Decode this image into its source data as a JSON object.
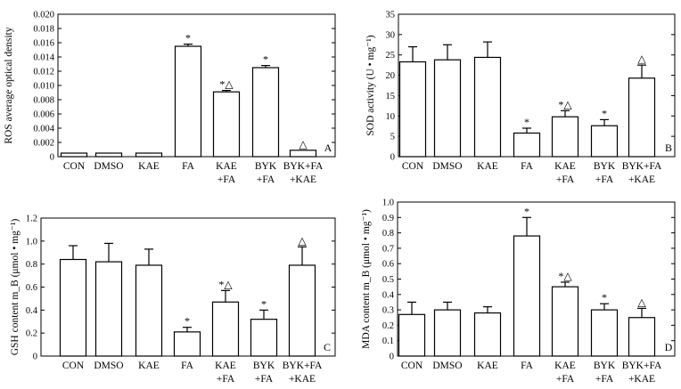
{
  "chart_data": [
    {
      "panel": "A",
      "type": "bar",
      "ylabel": "ROS average optical density",
      "ylim": [
        0,
        0.02
      ],
      "yticks": [
        0,
        0.002,
        0.004,
        0.006,
        0.008,
        0.01,
        0.012,
        0.014,
        0.016,
        0.018,
        0.02
      ],
      "ytick_labels": [
        "0",
        "0.002",
        "0.004",
        "0.006",
        "0.008",
        "0.010",
        "0.012",
        "0.014",
        "0.016",
        "0.018",
        "0.020"
      ],
      "categories": [
        [
          "CON"
        ],
        [
          "DMSO"
        ],
        [
          "KAE"
        ],
        [
          "FA"
        ],
        [
          "KAE",
          "+FA"
        ],
        [
          "BYK",
          "+FA"
        ],
        [
          "BYK+FA",
          "+KAE"
        ]
      ],
      "values": [
        0.0005,
        0.0005,
        0.0005,
        0.0155,
        0.0091,
        0.0125,
        0.0009
      ],
      "errors": [
        0,
        0,
        0,
        0.0003,
        0.0002,
        0.0003,
        0
      ],
      "significance": [
        "",
        "",
        "",
        "*",
        "*△",
        "*",
        "△"
      ]
    },
    {
      "panel": "B",
      "type": "bar",
      "ylabel": "SOD activity (U • mg⁻¹)",
      "ylim": [
        0,
        35
      ],
      "yticks": [
        0,
        5,
        10,
        15,
        20,
        25,
        30,
        35
      ],
      "ytick_labels": [
        "0",
        "5",
        "10",
        "15",
        "20",
        "25",
        "30",
        "35"
      ],
      "categories": [
        [
          "CON"
        ],
        [
          "DMSO"
        ],
        [
          "KAE"
        ],
        [
          "FA"
        ],
        [
          "KAE",
          "+FA"
        ],
        [
          "BYK",
          "+FA"
        ],
        [
          "BYK+FA",
          "+KAE"
        ]
      ],
      "values": [
        23.3,
        23.8,
        24.4,
        5.8,
        9.8,
        7.6,
        19.3
      ],
      "errors": [
        3.7,
        3.7,
        3.8,
        1.2,
        1.5,
        1.5,
        3.2
      ],
      "significance": [
        "",
        "",
        "",
        "*",
        "*△",
        "*",
        "△"
      ]
    },
    {
      "panel": "C",
      "type": "bar",
      "ylabel": "GSH content m_B (μmol • mg⁻¹)",
      "ylim": [
        0,
        1.2
      ],
      "yticks": [
        0,
        0.2,
        0.4,
        0.6,
        0.8,
        1.0,
        1.2
      ],
      "ytick_labels": [
        "0",
        "0.2",
        "0.4",
        "0.6",
        "0.8",
        "1.0",
        "1.2"
      ],
      "categories": [
        [
          "CON"
        ],
        [
          "DMSO"
        ],
        [
          "KAE"
        ],
        [
          "FA"
        ],
        [
          "KAE",
          "+FA"
        ],
        [
          "BYK",
          "+FA"
        ],
        [
          "BYK+FA",
          "+KAE"
        ]
      ],
      "values": [
        0.84,
        0.82,
        0.79,
        0.21,
        0.47,
        0.32,
        0.79
      ],
      "errors": [
        0.12,
        0.16,
        0.14,
        0.04,
        0.1,
        0.08,
        0.16
      ],
      "significance": [
        "",
        "",
        "",
        "*",
        "*△",
        "*",
        "△"
      ]
    },
    {
      "panel": "D",
      "type": "bar",
      "ylabel": "MDA content m_B (μmol • mg⁻¹)",
      "ylim": [
        0,
        1.0
      ],
      "yticks": [
        0,
        0.1,
        0.2,
        0.3,
        0.4,
        0.5,
        0.6,
        0.7,
        0.8,
        0.9,
        1.0
      ],
      "ytick_labels": [
        "0",
        "0.1",
        "0.2",
        "0.3",
        "0.4",
        "0.5",
        "0.6",
        "0.7",
        "0.8",
        "0.9",
        "1.0"
      ],
      "categories": [
        [
          "CON"
        ],
        [
          "DMSO"
        ],
        [
          "KAE"
        ],
        [
          "FA"
        ],
        [
          "KAE",
          "+FA"
        ],
        [
          "BYK",
          "+FA"
        ],
        [
          "BYK+FA",
          "+KAE"
        ]
      ],
      "values": [
        0.27,
        0.3,
        0.28,
        0.78,
        0.45,
        0.3,
        0.25
      ],
      "errors": [
        0.08,
        0.05,
        0.04,
        0.12,
        0.03,
        0.04,
        0.06
      ],
      "significance": [
        "",
        "",
        "",
        "*",
        "*△",
        "*",
        "△"
      ]
    }
  ]
}
